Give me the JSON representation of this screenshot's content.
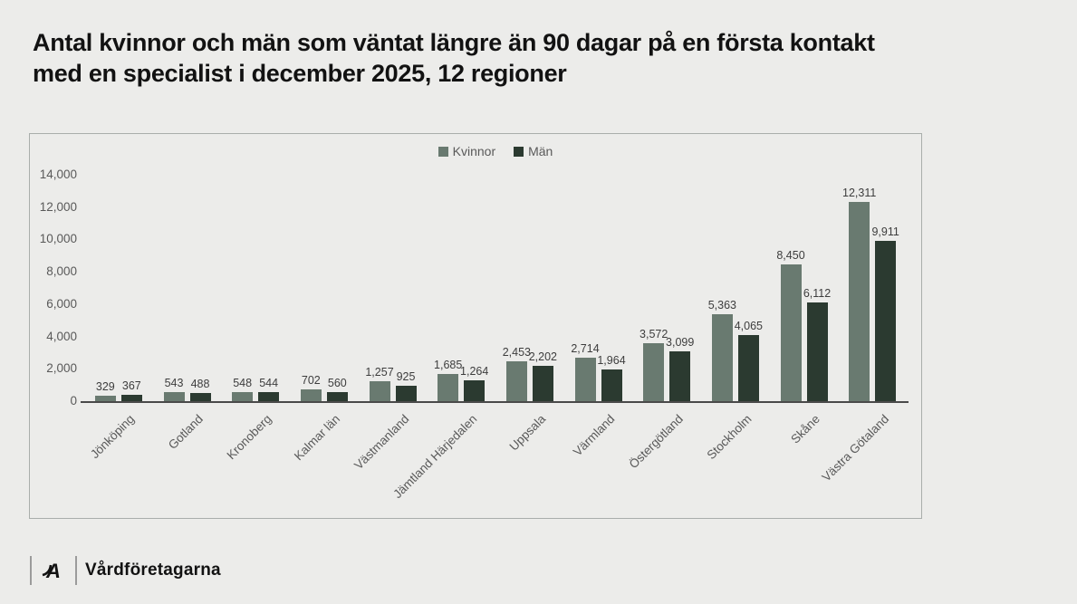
{
  "page": {
    "background": "#ececea",
    "title_line1": "Antal kvinnor och män som väntat längre än 90 dagar på en första kontakt",
    "title_line2": "med en specialist i december 2025, 12 regioner"
  },
  "footer": {
    "brand": "Vårdföretagarna",
    "logo_icon": "almega-logo-icon"
  },
  "chart_data": {
    "type": "bar",
    "title": "Antal kvinnor och män som väntat längre än 90 dagar på en första kontakt med en specialist i december 2025, 12 regioner",
    "categories": [
      "Jönköping",
      "Gotland",
      "Kronoberg",
      "Kalmar län",
      "Västmanland",
      "Jämtland Härjedalen",
      "Uppsala",
      "Värmland",
      "Östergötland",
      "Stockholm",
      "Skåne",
      "Västra Götaland"
    ],
    "series": [
      {
        "name": "Kvinnor",
        "color": "#697a70",
        "values": [
          329,
          543,
          548,
          702,
          1257,
          1685,
          2453,
          2714,
          3572,
          5363,
          8450,
          12311
        ]
      },
      {
        "name": "Män",
        "color": "#2b3a30",
        "values": [
          367,
          488,
          544,
          560,
          925,
          1264,
          2202,
          1964,
          3099,
          4065,
          6112,
          9911
        ]
      }
    ],
    "xlabel": "",
    "ylabel": "",
    "ylim": [
      0,
      14000
    ],
    "ytick_interval": 2000,
    "ytick_labels": [
      "0",
      "2,000",
      "4,000",
      "6,000",
      "8,000",
      "10,000",
      "12,000",
      "14,000"
    ],
    "grid": false,
    "legend_position": "top-center",
    "data_labels": true,
    "axis_text_color": "#595959",
    "label_text_color": "#3d3d3d"
  }
}
